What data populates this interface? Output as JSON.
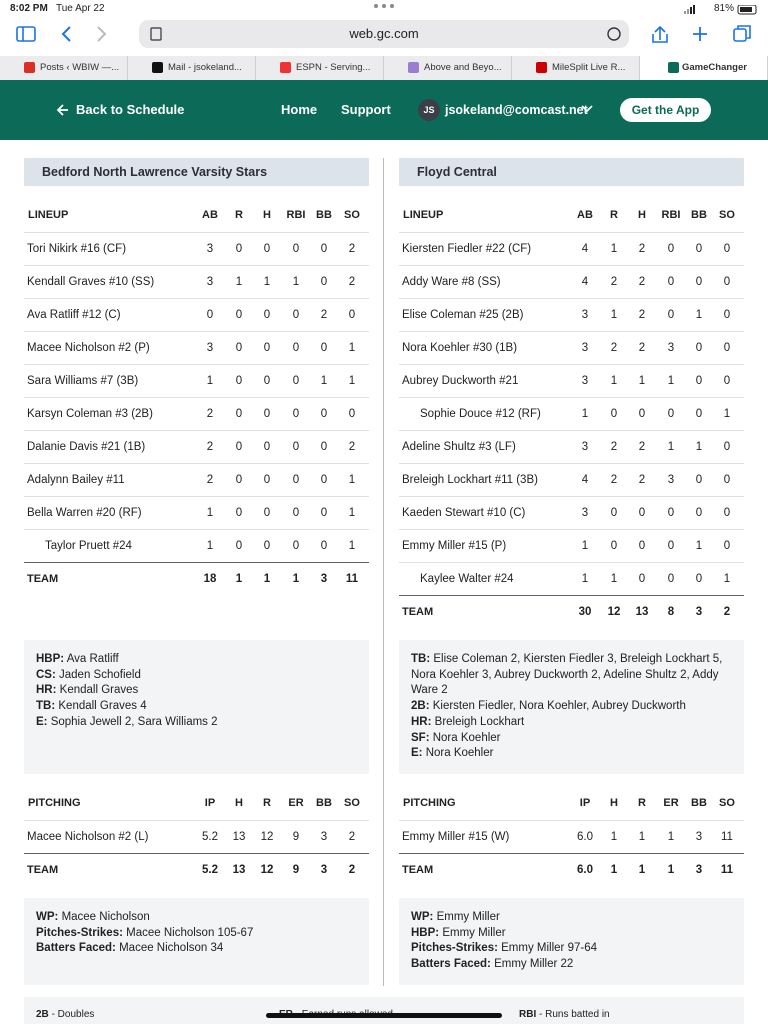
{
  "status_bar": {
    "time": "8:02 PM",
    "date": "Tue Apr 22",
    "battery": "81%"
  },
  "browser": {
    "url": "web.gc.com",
    "tabs": [
      "Posts ‹ WBIW —...",
      "Mail - jsokeland...",
      "ESPN - Serving...",
      "Above and Beyo...",
      "MileSplit Live R...",
      "GameChanger"
    ]
  },
  "nav": {
    "back": "Back to Schedule",
    "links": [
      "Home",
      "Support"
    ],
    "avatar": "JS",
    "email": "jsokeland@comcast.net",
    "cta": "Get the App"
  },
  "teams": [
    {
      "name": "Bedford North Lawrence Varsity Stars",
      "lineup": {
        "headers": [
          "LINEUP",
          "AB",
          "R",
          "H",
          "RBI",
          "BB",
          "SO"
        ],
        "rows": [
          [
            "Tori Nikirk #16 (CF)",
            "3",
            "0",
            "0",
            "0",
            "0",
            "2"
          ],
          [
            "Kendall Graves #10 (SS)",
            "3",
            "1",
            "1",
            "1",
            "0",
            "2"
          ],
          [
            "Ava Ratliff #12 (C)",
            "0",
            "0",
            "0",
            "0",
            "2",
            "0"
          ],
          [
            "Macee Nicholson #2 (P)",
            "3",
            "0",
            "0",
            "0",
            "0",
            "1"
          ],
          [
            "Sara Williams #7 (3B)",
            "1",
            "0",
            "0",
            "0",
            "1",
            "1"
          ],
          [
            "Karsyn Coleman #3 (2B)",
            "2",
            "0",
            "0",
            "0",
            "0",
            "0"
          ],
          [
            "Dalanie Davis #21 (1B)",
            "2",
            "0",
            "0",
            "0",
            "0",
            "2"
          ],
          [
            "Adalynn Bailey #11",
            "2",
            "0",
            "0",
            "0",
            "0",
            "1"
          ],
          [
            "Bella Warren #20 (RF)",
            "1",
            "0",
            "0",
            "0",
            "0",
            "1"
          ],
          [
            "Taylor Pruett #24",
            "1",
            "0",
            "0",
            "0",
            "0",
            "1"
          ]
        ],
        "team": [
          "TEAM",
          "18",
          "1",
          "1",
          "1",
          "3",
          "11"
        ]
      },
      "notes": [
        {
          "label": "HBP:",
          "text": "Ava Ratliff"
        },
        {
          "label": "CS:",
          "text": "Jaden Schofield"
        },
        {
          "label": "HR:",
          "text": "Kendall Graves"
        },
        {
          "label": "TB:",
          "text": "Kendall Graves 4"
        },
        {
          "label": "E:",
          "text": "Sophia Jewell 2, Sara Williams 2"
        }
      ],
      "pitching": {
        "headers": [
          "PITCHING",
          "IP",
          "H",
          "R",
          "ER",
          "BB",
          "SO"
        ],
        "rows": [
          [
            "Macee Nicholson #2 (L)",
            "5.2",
            "13",
            "12",
            "9",
            "3",
            "2"
          ]
        ],
        "team": [
          "TEAM",
          "5.2",
          "13",
          "12",
          "9",
          "3",
          "2"
        ]
      },
      "pitching_notes": [
        {
          "label": "WP:",
          "text": "Macee Nicholson"
        },
        {
          "label": "Pitches-Strikes:",
          "text": "Macee Nicholson 105-67"
        },
        {
          "label": "Batters Faced:",
          "text": "Macee Nicholson 34"
        }
      ]
    },
    {
      "name": "Floyd Central",
      "lineup": {
        "headers": [
          "LINEUP",
          "AB",
          "R",
          "H",
          "RBI",
          "BB",
          "SO"
        ],
        "rows": [
          [
            "Kiersten Fiedler #22 (CF)",
            "4",
            "1",
            "2",
            "0",
            "0",
            "0"
          ],
          [
            "Addy Ware #8 (SS)",
            "4",
            "2",
            "2",
            "0",
            "0",
            "0"
          ],
          [
            "Elise Coleman #25 (2B)",
            "3",
            "1",
            "2",
            "0",
            "1",
            "0"
          ],
          [
            "Nora Koehler #30 (1B)",
            "3",
            "2",
            "2",
            "3",
            "0",
            "0"
          ],
          [
            "Aubrey Duckworth #21",
            "3",
            "1",
            "1",
            "1",
            "0",
            "0"
          ],
          [
            "Sophie Douce #12 (RF)",
            "1",
            "0",
            "0",
            "0",
            "0",
            "1"
          ],
          [
            "Adeline Shultz #3 (LF)",
            "3",
            "2",
            "2",
            "1",
            "1",
            "0"
          ],
          [
            "Breleigh Lockhart #11 (3B)",
            "4",
            "2",
            "2",
            "3",
            "0",
            "0"
          ],
          [
            "Kaeden Stewart #10 (C)",
            "3",
            "0",
            "0",
            "0",
            "0",
            "0"
          ],
          [
            "Emmy Miller #15 (P)",
            "1",
            "0",
            "0",
            "0",
            "1",
            "0"
          ],
          [
            "Kaylee Walter #24",
            "1",
            "1",
            "0",
            "0",
            "0",
            "1"
          ]
        ],
        "team": [
          "TEAM",
          "30",
          "12",
          "13",
          "8",
          "3",
          "2"
        ]
      },
      "notes": [
        {
          "label": "TB:",
          "text": "Elise Coleman 2, Kiersten Fiedler 3, Breleigh Lockhart 5, Nora Koehler 3, Aubrey Duckworth 2, Adeline Shultz 2, Addy Ware 2"
        },
        {
          "label": "2B:",
          "text": "Kiersten Fiedler, Nora Koehler, Aubrey Duckworth"
        },
        {
          "label": "HR:",
          "text": "Breleigh Lockhart"
        },
        {
          "label": "SF:",
          "text": "Nora Koehler"
        },
        {
          "label": "E:",
          "text": "Nora Koehler"
        }
      ],
      "pitching": {
        "headers": [
          "PITCHING",
          "IP",
          "H",
          "R",
          "ER",
          "BB",
          "SO"
        ],
        "rows": [
          [
            "Emmy Miller #15 (W)",
            "6.0",
            "1",
            "1",
            "1",
            "3",
            "11"
          ]
        ],
        "team": [
          "TEAM",
          "6.0",
          "1",
          "1",
          "1",
          "3",
          "11"
        ]
      },
      "pitching_notes": [
        {
          "label": "WP:",
          "text": "Emmy Miller"
        },
        {
          "label": "HBP:",
          "text": "Emmy Miller"
        },
        {
          "label": "Pitches-Strikes:",
          "text": "Emmy Miller 97-64"
        },
        {
          "label": "Batters Faced:",
          "text": "Emmy Miller 22"
        }
      ]
    }
  ],
  "legend": [
    {
      "abbr": "2B",
      "text": "- Doubles"
    },
    {
      "abbr": "ER",
      "text": "- Earned runs allowed"
    },
    {
      "abbr": "RBI",
      "text": "- Runs batted in"
    }
  ]
}
